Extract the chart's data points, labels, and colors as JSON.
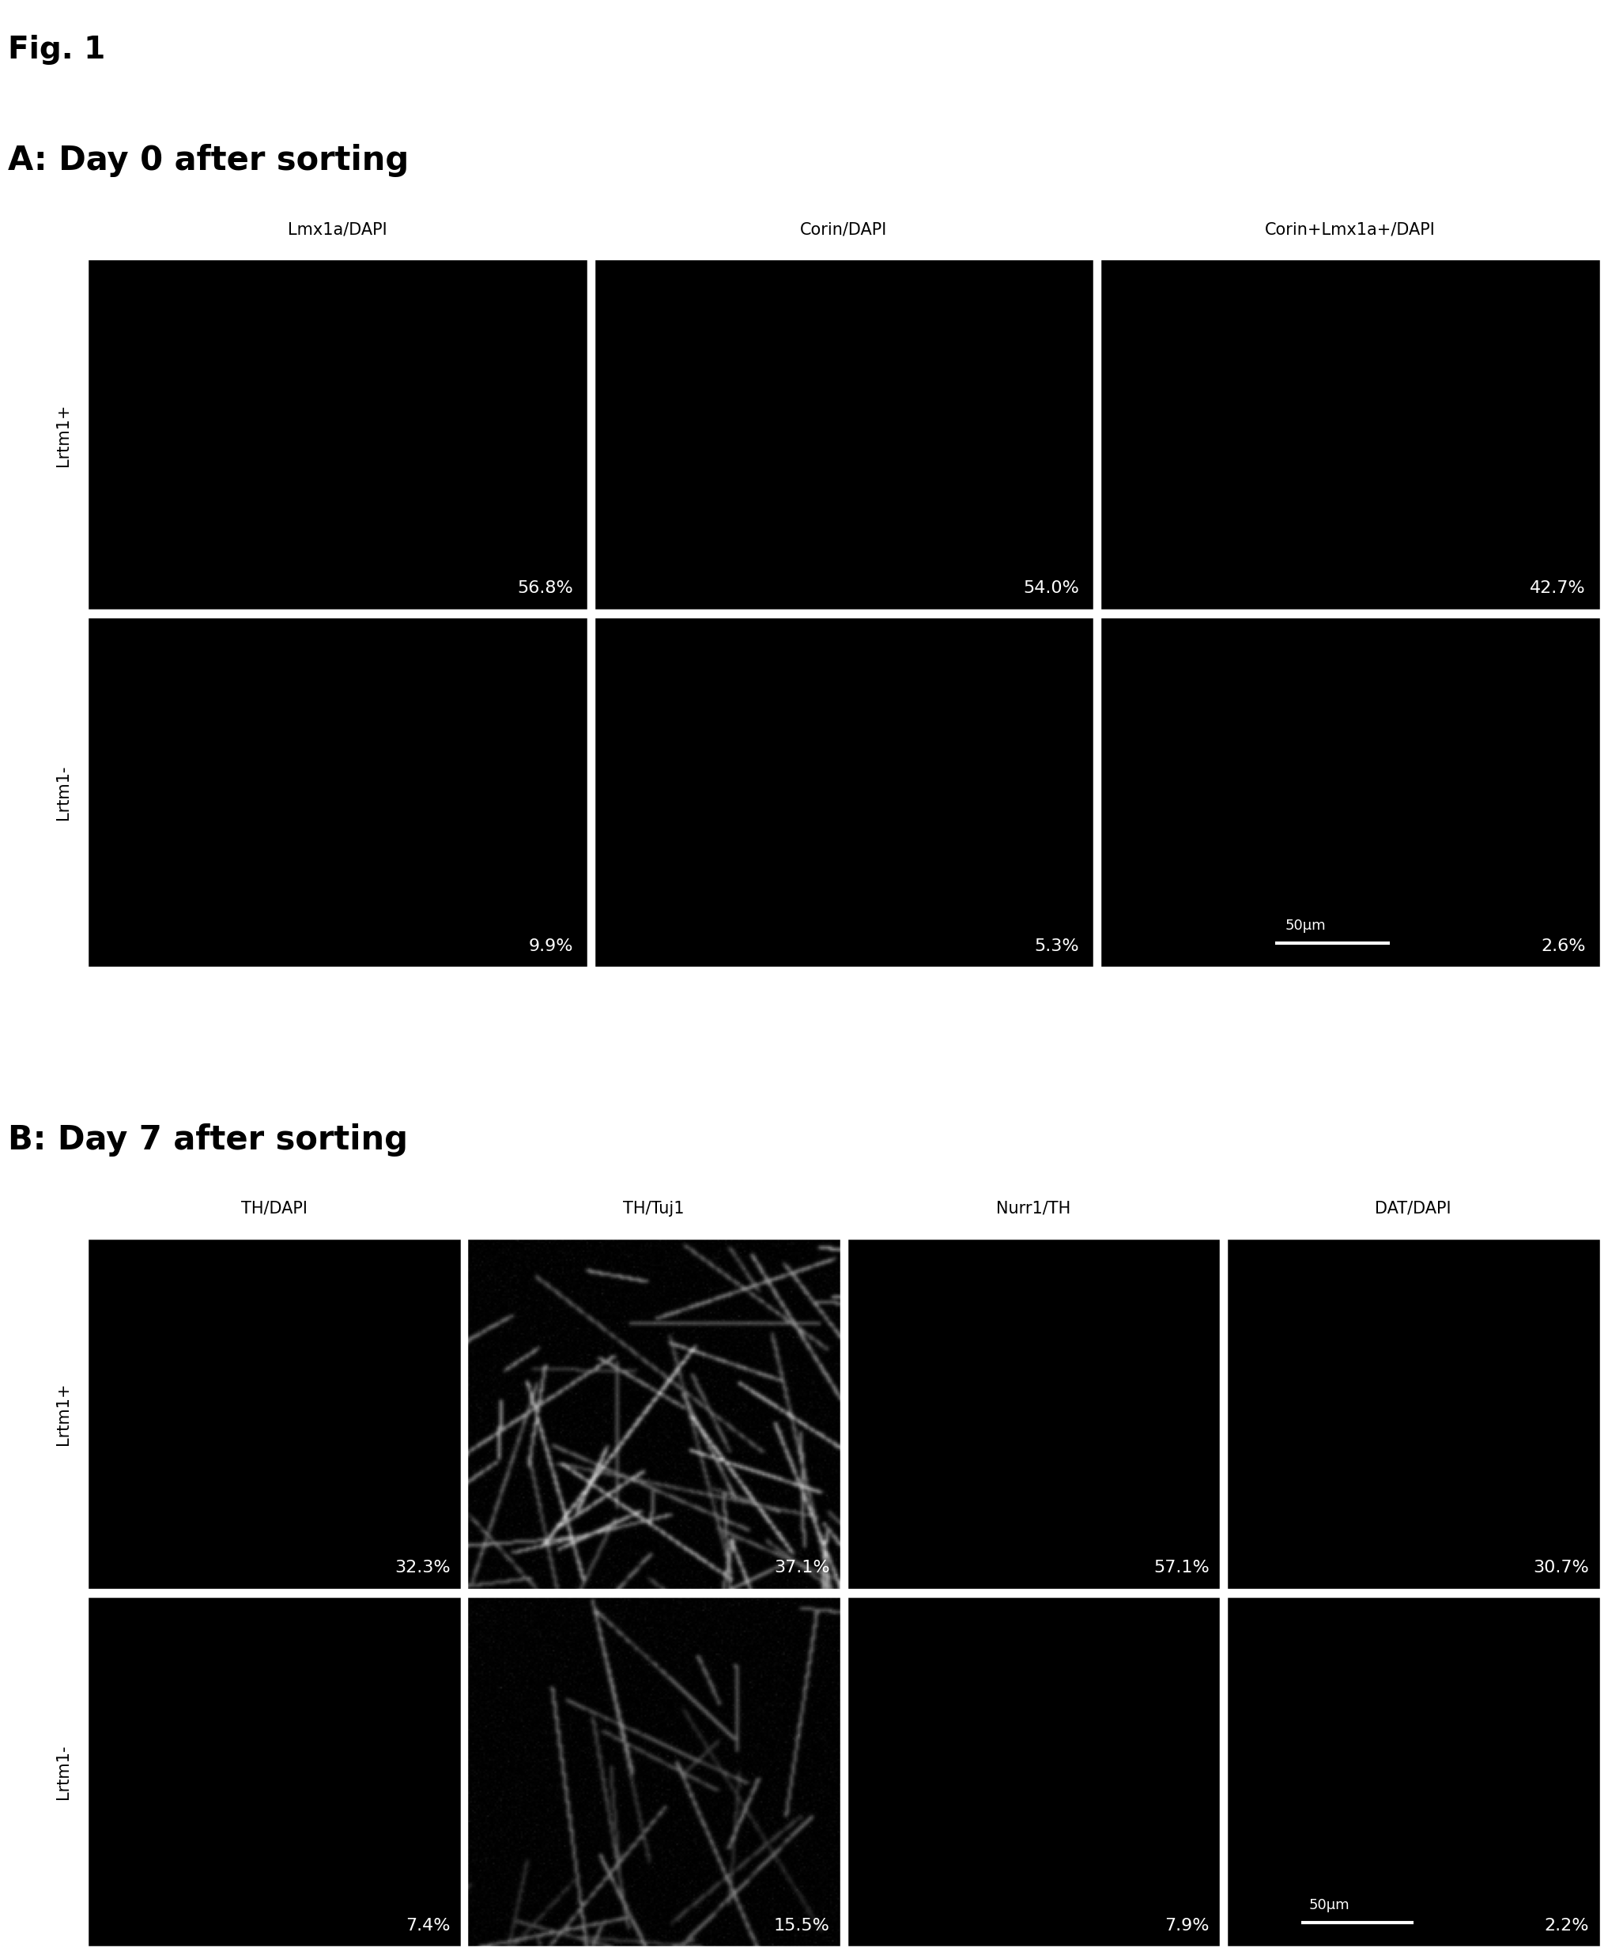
{
  "fig_label": "Fig. 1",
  "section_A_title": "A: Day 0 after sorting",
  "section_B_title": "B: Day 7 after sorting",
  "section_A_col_labels": [
    "Lmx1a/DAPI",
    "Corin/DAPI",
    "Corin+Lmx1a+/DAPI"
  ],
  "section_B_col_labels": [
    "TH/DAPI",
    "TH/Tuj1",
    "Nurr1/TH",
    "DAT/DAPI"
  ],
  "section_A_row_labels": [
    "Lrtm1+",
    "Lrtm1-"
  ],
  "section_B_row_labels": [
    "Lrtm1+",
    "Lrtm1-"
  ],
  "section_A_percentages": [
    [
      "56.8%",
      "54.0%",
      "42.7%"
    ],
    [
      "9.9%",
      "5.3%",
      "2.6%"
    ]
  ],
  "section_B_percentages": [
    [
      "32.3%",
      "37.1%",
      "57.1%",
      "30.7%"
    ],
    [
      "7.4%",
      "15.5%",
      "7.9%",
      "2.2%"
    ]
  ],
  "scale_bar_A_row": 1,
  "scale_bar_A_col": 2,
  "scale_bar_B_row": 1,
  "scale_bar_B_col": 3,
  "scale_bar_text": "50μm",
  "bg_color": "#ffffff",
  "cell_bg": "#000000",
  "text_color": "#ffffff",
  "label_color": "#000000",
  "border_color": "#ffffff",
  "line_color": "#333333"
}
